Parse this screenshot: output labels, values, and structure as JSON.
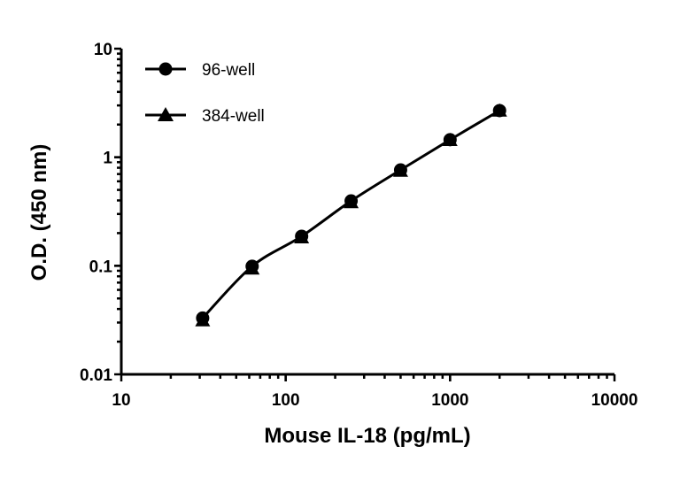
{
  "chart_data": {
    "type": "line",
    "title": "",
    "xlabel": "Mouse IL-18 (pg/mL)",
    "ylabel": "O.D. (450 nm)",
    "xscale": "log",
    "yscale": "log",
    "xlim": [
      10,
      10000
    ],
    "ylim": [
      0.01,
      10
    ],
    "xticks": [
      "10",
      "100",
      "1000",
      "10000"
    ],
    "yticks": [
      "0.01",
      "0.1",
      "1",
      "10"
    ],
    "grid": false,
    "legend": "top-left",
    "x": [
      31.25,
      62.5,
      125,
      250,
      500,
      1000,
      2000
    ],
    "series": [
      {
        "name": "96-well",
        "marker": "circle",
        "color": "#000000",
        "values": [
          0.033,
          0.099,
          0.187,
          0.396,
          0.764,
          1.45,
          2.69
        ]
      },
      {
        "name": "384-well",
        "marker": "triangle",
        "color": "#000000",
        "values": [
          0.031,
          0.093,
          0.18,
          0.38,
          0.74,
          1.42,
          2.65
        ]
      }
    ]
  }
}
